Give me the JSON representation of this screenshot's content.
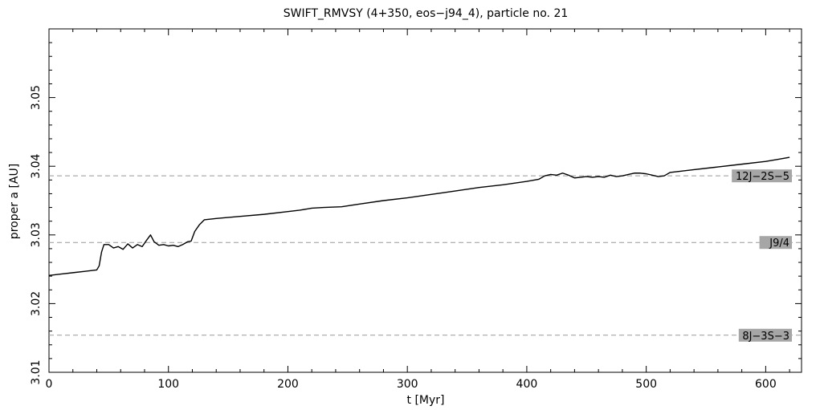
{
  "chart_data": {
    "type": "line",
    "title": "SWIFT_RMVSY (4+350, eos−j94_4), particle no. 21",
    "xlabel": "t [Myr]",
    "ylabel": "proper a [AU]",
    "xlim": [
      0,
      630
    ],
    "ylim": [
      3.01,
      3.06
    ],
    "xticks": [
      0,
      100,
      200,
      300,
      400,
      500,
      600
    ],
    "xtick_labels": [
      "0",
      "100",
      "200",
      "300",
      "400",
      "500",
      "600"
    ],
    "yticks": [
      3.01,
      3.02,
      3.03,
      3.04,
      3.05
    ],
    "ytick_labels": [
      "3.01",
      "3.02",
      "3.03",
      "3.04",
      "3.05"
    ],
    "grid": false,
    "series": [
      {
        "x": [
          0,
          10,
          20,
          30,
          40,
          42,
          44,
          46,
          50,
          54,
          58,
          62,
          66,
          70,
          74,
          78,
          82,
          85,
          88,
          92,
          96,
          100,
          104,
          108,
          112,
          116,
          119,
          122,
          126,
          130,
          140,
          160,
          180,
          200,
          210,
          220,
          230,
          245,
          260,
          280,
          300,
          320,
          340,
          360,
          380,
          400,
          410,
          415,
          420,
          425,
          430,
          435,
          440,
          445,
          450,
          455,
          460,
          465,
          470,
          475,
          480,
          485,
          490,
          495,
          500,
          505,
          510,
          515,
          520,
          530,
          540,
          560,
          580,
          600,
          610,
          620
        ],
        "y": [
          3.0241,
          3.0243,
          3.0245,
          3.0247,
          3.0249,
          3.0255,
          3.0275,
          3.0286,
          3.0286,
          3.0281,
          3.0283,
          3.0279,
          3.0287,
          3.0281,
          3.0286,
          3.0283,
          3.0293,
          3.03,
          3.029,
          3.0285,
          3.0286,
          3.0284,
          3.0285,
          3.0283,
          3.0286,
          3.029,
          3.0291,
          3.0305,
          3.0315,
          3.0322,
          3.0324,
          3.0327,
          3.033,
          3.0334,
          3.0336,
          3.0339,
          3.034,
          3.0341,
          3.0345,
          3.035,
          3.0354,
          3.0359,
          3.0364,
          3.0369,
          3.0373,
          3.0378,
          3.0381,
          3.0386,
          3.0388,
          3.0387,
          3.039,
          3.0387,
          3.0383,
          3.0384,
          3.0385,
          3.0384,
          3.0385,
          3.0384,
          3.0387,
          3.0385,
          3.0386,
          3.0388,
          3.039,
          3.039,
          3.0389,
          3.0387,
          3.0385,
          3.0386,
          3.0391,
          3.0393,
          3.0395,
          3.0399,
          3.0403,
          3.0407,
          3.041,
          3.0413
        ]
      }
    ],
    "resonances": [
      {
        "label": "12J−2S−5",
        "a": 3.0386
      },
      {
        "label": "J9/4",
        "a": 3.0289
      },
      {
        "label": "8J−3S−3",
        "a": 3.0154
      }
    ],
    "colors": {
      "line": "#000000",
      "resonance_line": "#999999",
      "label_box": "#a6a6a6"
    }
  }
}
